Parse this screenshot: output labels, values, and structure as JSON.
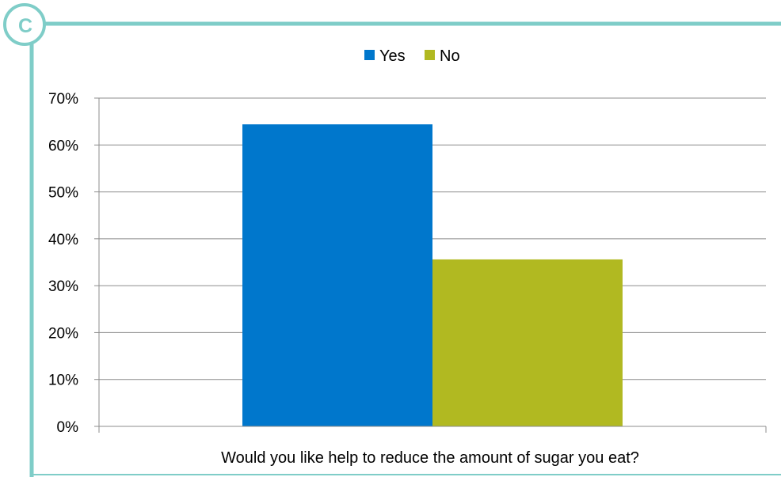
{
  "badge": {
    "letter": "C"
  },
  "colors": {
    "frame": "#7fcdc8",
    "yes": "#0077cc",
    "no": "#b1b921",
    "grid": "#8c8c8c",
    "axis": "#8c8c8c"
  },
  "chart_data": {
    "type": "bar",
    "title": "",
    "xlabel": "Would you like help to reduce the amount of sugar you eat?",
    "ylabel": "",
    "categories": [
      "Would you like help to reduce the amount of sugar you eat?"
    ],
    "series": [
      {
        "name": "Yes",
        "values": [
          0.644
        ],
        "color": "#0077cc"
      },
      {
        "name": "No",
        "values": [
          0.356
        ],
        "color": "#b1b921"
      }
    ],
    "ylim": [
      0,
      0.7
    ],
    "yticks": [
      0,
      0.1,
      0.2,
      0.3,
      0.4,
      0.5,
      0.6,
      0.7
    ],
    "ytick_labels": [
      "0%",
      "10%",
      "20%",
      "30%",
      "40%",
      "50%",
      "60%",
      "70%"
    ],
    "grid": true,
    "legend_position": "top-center"
  }
}
